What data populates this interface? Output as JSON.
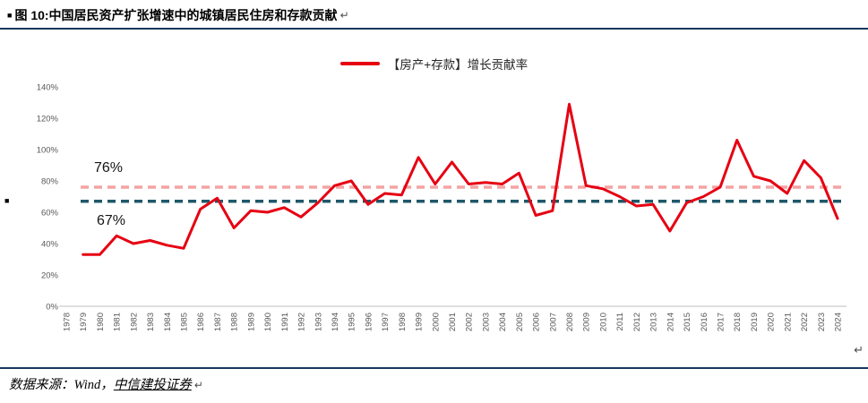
{
  "title": {
    "marker": "■",
    "text": "图 10:中国居民资产扩张增速中的城镇居民住房和存款贡献",
    "return_mark": "↵"
  },
  "legend": {
    "label": "【房产+存款】增长贡献率",
    "line_color": "#e60012"
  },
  "chart_data": {
    "type": "line",
    "title": "【房产+存款】增长贡献率",
    "xlim": [
      1978,
      2024
    ],
    "ylim": [
      0,
      140
    ],
    "ytick_step": 20,
    "ytick_suffix": "%",
    "grid": false,
    "legend_position": "top",
    "axis_color": "#bfbfbf",
    "tick_label_color": "#595959",
    "xticks": [
      1978,
      1979,
      1980,
      1981,
      1982,
      1983,
      1984,
      1985,
      1986,
      1987,
      1988,
      1989,
      1990,
      1991,
      1992,
      1993,
      1994,
      1995,
      1996,
      1997,
      1998,
      1999,
      2000,
      2001,
      2002,
      2003,
      2004,
      2005,
      2006,
      2007,
      2008,
      2009,
      2010,
      2011,
      2012,
      2013,
      2014,
      2015,
      2016,
      2017,
      2018,
      2019,
      2020,
      2021,
      2022,
      2023,
      2024
    ],
    "series": [
      {
        "name": "【房产+存款】增长贡献率",
        "color": "#e60012",
        "x": [
          1979,
          1980,
          1981,
          1982,
          1983,
          1984,
          1985,
          1986,
          1987,
          1988,
          1989,
          1990,
          1991,
          1992,
          1993,
          1994,
          1995,
          1996,
          1997,
          1998,
          1999,
          2000,
          2001,
          2002,
          2003,
          2004,
          2005,
          2006,
          2007,
          2008,
          2009,
          2010,
          2011,
          2012,
          2013,
          2014,
          2015,
          2016,
          2017,
          2018,
          2019,
          2020,
          2021,
          2022,
          2023,
          2024
        ],
        "values": [
          33,
          33,
          45,
          40,
          42,
          39,
          37,
          62,
          69,
          50,
          61,
          60,
          63,
          57,
          66,
          77,
          80,
          65,
          72,
          71,
          95,
          78,
          92,
          78,
          79,
          78,
          85,
          58,
          61,
          129,
          77,
          75,
          70,
          64,
          65,
          48,
          66,
          70,
          76,
          106,
          83,
          80,
          72,
          93,
          82,
          56
        ]
      }
    ],
    "reference_lines": [
      {
        "label": "76%",
        "value": 76,
        "color": "#f4a3a3",
        "style": "dashed"
      },
      {
        "label": "67%",
        "value": 67,
        "color": "#1f5868",
        "style": "dashed"
      }
    ]
  },
  "footer": {
    "prefix": "数据来源：Wind，",
    "source": "中信建投证券",
    "return_mark": "↵"
  },
  "margin_marks": {
    "left_bullet": "■",
    "right_return": "↵"
  }
}
